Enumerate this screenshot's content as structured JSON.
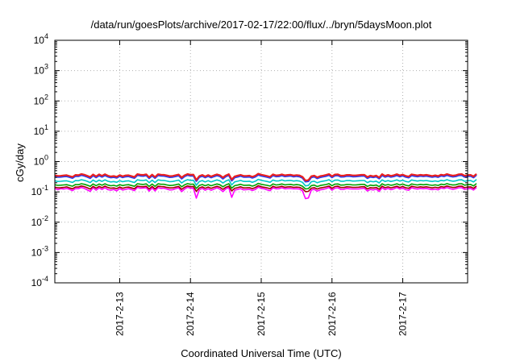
{
  "chart_data": {
    "type": "line",
    "title": "/data/run/goesPlots/archive/2017-02-17/22:00/flux/../bryn/5daysMoon.plot",
    "xlabel": "Coordinated Universal Time (UTC)",
    "ylabel": "cGy/day",
    "x_scale": "time",
    "y_scale": "log",
    "xlim": [
      "2017-02-12 02:00",
      "2017-02-17 22:00"
    ],
    "ylim": [
      0.0001,
      10000
    ],
    "grid": true,
    "legend": "none",
    "x_ticks": [
      "2017-2-13",
      "2017-2-14",
      "2017-2-15",
      "2017-2-16",
      "2017-2-17"
    ],
    "x_tick_values": [
      "2017-02-13 00:00",
      "2017-02-14 00:00",
      "2017-02-15 00:00",
      "2017-02-16 00:00",
      "2017-02-17 00:00"
    ],
    "y_ticks": [
      {
        "value": 0.0001,
        "base": "10",
        "exp": "-4"
      },
      {
        "value": 0.001,
        "base": "10",
        "exp": "-3"
      },
      {
        "value": 0.01,
        "base": "10",
        "exp": "-2"
      },
      {
        "value": 0.1,
        "base": "10",
        "exp": "-1"
      },
      {
        "value": 1,
        "base": "10",
        "exp": "0"
      },
      {
        "value": 10,
        "base": "10",
        "exp": "1"
      },
      {
        "value": 100,
        "base": "10",
        "exp": "2"
      },
      {
        "value": 1000,
        "base": "10",
        "exp": "3"
      },
      {
        "value": 10000,
        "base": "10",
        "exp": "4"
      }
    ],
    "series_time_step_hours": 1,
    "series": [
      {
        "color": "#ff00ff",
        "values": [
          0.13,
          0.118,
          0.128,
          0.124,
          0.13,
          0.121,
          0.11,
          0.129,
          0.128,
          0.14,
          0.13,
          0.117,
          0.104,
          0.138,
          0.114,
          0.135,
          0.12,
          0.138,
          0.119,
          0.114,
          0.12,
          0.108,
          0.129,
          0.115,
          0.121,
          0.128,
          0.119,
          0.11,
          0.141,
          0.132,
          0.134,
          0.138,
          0.106,
          0.135,
          0.107,
          0.138,
          0.13,
          0.133,
          0.124,
          0.116,
          0.118,
          0.128,
          0.136,
          0.102,
          0.124,
          0.142,
          0.132,
          0.133,
          0.062,
          0.117,
          0.131,
          0.113,
          0.127,
          0.113,
          0.124,
          0.137,
          0.123,
          0.102,
          0.126,
          0.138,
          0.066,
          0.114,
          0.12,
          0.129,
          0.117,
          0.119,
          0.121,
          0.111,
          0.12,
          0.144,
          0.132,
          0.126,
          0.117,
          0.109,
          0.136,
          0.126,
          0.127,
          0.137,
          0.126,
          0.129,
          0.129,
          0.126,
          0.126,
          0.124,
          0.108,
          0.06,
          0.063,
          0.116,
          0.12,
          0.106,
          0.117,
          0.121,
          0.129,
          0.14,
          0.114,
          0.133,
          0.137,
          0.121,
          0.122,
          0.13,
          0.126,
          0.125,
          0.125,
          0.125,
          0.129,
          0.132,
          0.107,
          0.12,
          0.116,
          0.124,
          0.103,
          0.138,
          0.119,
          0.13,
          0.118,
          0.126,
          0.139,
          0.124,
          0.134,
          0.118,
          0.113,
          0.138,
          0.128,
          0.124,
          0.13,
          0.127,
          0.13,
          0.123,
          0.119,
          0.124,
          0.117,
          0.134,
          0.129,
          0.139,
          0.129,
          0.121,
          0.128,
          0.137,
          0.138,
          0.121,
          0.126,
          0.13,
          0.115,
          0.14
        ]
      },
      {
        "color": "#a00000",
        "values": [
          0.143,
          0.136,
          0.138,
          0.14,
          0.146,
          0.135,
          0.126,
          0.145,
          0.145,
          0.157,
          0.149,
          0.137,
          0.124,
          0.152,
          0.132,
          0.152,
          0.138,
          0.155,
          0.139,
          0.132,
          0.135,
          0.128,
          0.145,
          0.132,
          0.14,
          0.144,
          0.135,
          0.126,
          0.156,
          0.149,
          0.148,
          0.153,
          0.124,
          0.152,
          0.125,
          0.154,
          0.149,
          0.148,
          0.14,
          0.135,
          0.136,
          0.144,
          0.151,
          0.121,
          0.142,
          0.158,
          0.148,
          0.151,
          0.104,
          0.135,
          0.146,
          0.131,
          0.145,
          0.131,
          0.142,
          0.153,
          0.142,
          0.121,
          0.142,
          0.154,
          0.108,
          0.131,
          0.138,
          0.147,
          0.135,
          0.136,
          0.138,
          0.128,
          0.139,
          0.16,
          0.147,
          0.142,
          0.135,
          0.128,
          0.153,
          0.141,
          0.145,
          0.153,
          0.142,
          0.146,
          0.147,
          0.141,
          0.144,
          0.141,
          0.127,
          0.102,
          0.104,
          0.133,
          0.138,
          0.124,
          0.134,
          0.139,
          0.146,
          0.156,
          0.131,
          0.15,
          0.154,
          0.139,
          0.139,
          0.147,
          0.145,
          0.141,
          0.141,
          0.143,
          0.147,
          0.148,
          0.125,
          0.138,
          0.134,
          0.14,
          0.122,
          0.154,
          0.137,
          0.146,
          0.136,
          0.144,
          0.154,
          0.14,
          0.151,
          0.136,
          0.131,
          0.153,
          0.146,
          0.141,
          0.147,
          0.143,
          0.147,
          0.141,
          0.135,
          0.142,
          0.135,
          0.15,
          0.144,
          0.157,
          0.146,
          0.139,
          0.143,
          0.154,
          0.155,
          0.138,
          0.145,
          0.146,
          0.131,
          0.158
        ]
      },
      {
        "color": "#00a000",
        "values": [
          0.172,
          0.164,
          0.166,
          0.17,
          0.173,
          0.163,
          0.154,
          0.175,
          0.173,
          0.186,
          0.178,
          0.166,
          0.152,
          0.183,
          0.16,
          0.181,
          0.166,
          0.185,
          0.167,
          0.159,
          0.164,
          0.155,
          0.174,
          0.161,
          0.17,
          0.173,
          0.162,
          0.153,
          0.186,
          0.179,
          0.176,
          0.184,
          0.151,
          0.181,
          0.153,
          0.185,
          0.178,
          0.178,
          0.17,
          0.162,
          0.165,
          0.172,
          0.181,
          0.147,
          0.171,
          0.187,
          0.178,
          0.18,
          0.13,
          0.163,
          0.175,
          0.159,
          0.174,
          0.159,
          0.171,
          0.183,
          0.172,
          0.147,
          0.17,
          0.186,
          0.133,
          0.16,
          0.167,
          0.178,
          0.165,
          0.165,
          0.167,
          0.155,
          0.167,
          0.191,
          0.178,
          0.171,
          0.164,
          0.156,
          0.183,
          0.17,
          0.173,
          0.183,
          0.171,
          0.175,
          0.177,
          0.169,
          0.174,
          0.17,
          0.154,
          0.125,
          0.129,
          0.161,
          0.167,
          0.15,
          0.162,
          0.168,
          0.175,
          0.187,
          0.16,
          0.18,
          0.183,
          0.167,
          0.168,
          0.176,
          0.175,
          0.17,
          0.17,
          0.173,
          0.177,
          0.177,
          0.152,
          0.167,
          0.161,
          0.168,
          0.148,
          0.185,
          0.165,
          0.175,
          0.165,
          0.172,
          0.185,
          0.17,
          0.181,
          0.165,
          0.158,
          0.183,
          0.175,
          0.17,
          0.177,
          0.172,
          0.177,
          0.17,
          0.164,
          0.171,
          0.163,
          0.179,
          0.173,
          0.187,
          0.175,
          0.168,
          0.172,
          0.184,
          0.186,
          0.166,
          0.174,
          0.176,
          0.158,
          0.189
        ]
      },
      {
        "color": "#00c8c8",
        "values": [
          0.232,
          0.22,
          0.223,
          0.229,
          0.232,
          0.218,
          0.205,
          0.236,
          0.233,
          0.252,
          0.24,
          0.223,
          0.203,
          0.246,
          0.214,
          0.245,
          0.222,
          0.249,
          0.225,
          0.213,
          0.219,
          0.207,
          0.234,
          0.216,
          0.228,
          0.232,
          0.217,
          0.204,
          0.251,
          0.241,
          0.237,
          0.248,
          0.201,
          0.243,
          0.204,
          0.249,
          0.241,
          0.239,
          0.229,
          0.217,
          0.221,
          0.232,
          0.244,
          0.196,
          0.23,
          0.253,
          0.24,
          0.242,
          0.165,
          0.219,
          0.236,
          0.213,
          0.234,
          0.212,
          0.23,
          0.247,
          0.231,
          0.196,
          0.229,
          0.251,
          0.17,
          0.214,
          0.224,
          0.239,
          0.222,
          0.221,
          0.224,
          0.207,
          0.225,
          0.258,
          0.24,
          0.23,
          0.22,
          0.208,
          0.246,
          0.229,
          0.232,
          0.247,
          0.23,
          0.236,
          0.239,
          0.227,
          0.234,
          0.228,
          0.206,
          0.158,
          0.163,
          0.216,
          0.225,
          0.2,
          0.217,
          0.226,
          0.236,
          0.252,
          0.215,
          0.243,
          0.246,
          0.224,
          0.225,
          0.237,
          0.236,
          0.228,
          0.229,
          0.233,
          0.238,
          0.238,
          0.203,
          0.224,
          0.215,
          0.226,
          0.197,
          0.25,
          0.221,
          0.236,
          0.221,
          0.232,
          0.249,
          0.228,
          0.243,
          0.221,
          0.211,
          0.247,
          0.236,
          0.228,
          0.238,
          0.231,
          0.238,
          0.228,
          0.22,
          0.23,
          0.219,
          0.241,
          0.232,
          0.252,
          0.235,
          0.225,
          0.232,
          0.248,
          0.251,
          0.223,
          0.234,
          0.237,
          0.212,
          0.255
        ]
      },
      {
        "color": "#1e3cff",
        "values": [
          0.325,
          0.31,
          0.313,
          0.322,
          0.327,
          0.306,
          0.287,
          0.333,
          0.328,
          0.357,
          0.339,
          0.313,
          0.284,
          0.347,
          0.3,
          0.347,
          0.313,
          0.352,
          0.316,
          0.298,
          0.307,
          0.29,
          0.33,
          0.302,
          0.321,
          0.326,
          0.304,
          0.285,
          0.355,
          0.34,
          0.334,
          0.351,
          0.281,
          0.343,
          0.285,
          0.352,
          0.34,
          0.337,
          0.323,
          0.305,
          0.31,
          0.327,
          0.344,
          0.274,
          0.324,
          0.358,
          0.338,
          0.342,
          0.228,
          0.307,
          0.333,
          0.298,
          0.33,
          0.297,
          0.324,
          0.349,
          0.326,
          0.274,
          0.322,
          0.355,
          0.235,
          0.3,
          0.315,
          0.337,
          0.311,
          0.31,
          0.315,
          0.29,
          0.316,
          0.366,
          0.339,
          0.324,
          0.309,
          0.291,
          0.348,
          0.322,
          0.327,
          0.349,
          0.324,
          0.333,
          0.338,
          0.319,
          0.33,
          0.321,
          0.288,
          0.218,
          0.225,
          0.303,
          0.316,
          0.279,
          0.304,
          0.318,
          0.333,
          0.357,
          0.301,
          0.344,
          0.348,
          0.315,
          0.316,
          0.334,
          0.333,
          0.321,
          0.322,
          0.329,
          0.336,
          0.336,
          0.284,
          0.315,
          0.302,
          0.318,
          0.275,
          0.354,
          0.31,
          0.333,
          0.31,
          0.327,
          0.352,
          0.321,
          0.343,
          0.31,
          0.296,
          0.349,
          0.333,
          0.321,
          0.336,
          0.326,
          0.336,
          0.321,
          0.309,
          0.324,
          0.307,
          0.34,
          0.327,
          0.357,
          0.331,
          0.316,
          0.327,
          0.351,
          0.355,
          0.313,
          0.33,
          0.334,
          0.297,
          0.362
        ]
      },
      {
        "color": "#e82020",
        "values": [
          0.352,
          0.336,
          0.339,
          0.349,
          0.355,
          0.332,
          0.311,
          0.361,
          0.356,
          0.387,
          0.368,
          0.339,
          0.308,
          0.376,
          0.325,
          0.377,
          0.339,
          0.382,
          0.343,
          0.323,
          0.333,
          0.314,
          0.358,
          0.327,
          0.348,
          0.353,
          0.33,
          0.309,
          0.385,
          0.369,
          0.362,
          0.381,
          0.304,
          0.372,
          0.309,
          0.382,
          0.369,
          0.365,
          0.35,
          0.331,
          0.336,
          0.355,
          0.373,
          0.297,
          0.352,
          0.388,
          0.366,
          0.371,
          0.247,
          0.333,
          0.361,
          0.323,
          0.358,
          0.322,
          0.351,
          0.379,
          0.353,
          0.297,
          0.349,
          0.385,
          0.255,
          0.325,
          0.342,
          0.365,
          0.337,
          0.336,
          0.342,
          0.314,
          0.343,
          0.397,
          0.368,
          0.351,
          0.335,
          0.315,
          0.377,
          0.349,
          0.355,
          0.379,
          0.351,
          0.361,
          0.367,
          0.346,
          0.358,
          0.348,
          0.312,
          0.236,
          0.244,
          0.329,
          0.343,
          0.302,
          0.33,
          0.345,
          0.361,
          0.387,
          0.326,
          0.373,
          0.378,
          0.342,
          0.343,
          0.362,
          0.361,
          0.348,
          0.349,
          0.357,
          0.364,
          0.364,
          0.308,
          0.342,
          0.327,
          0.345,
          0.298,
          0.384,
          0.336,
          0.361,
          0.336,
          0.355,
          0.382,
          0.348,
          0.372,
          0.336,
          0.321,
          0.378,
          0.361,
          0.348,
          0.364,
          0.353,
          0.364,
          0.348,
          0.335,
          0.351,
          0.333,
          0.369,
          0.355,
          0.387,
          0.359,
          0.343,
          0.355,
          0.381,
          0.385,
          0.34,
          0.358,
          0.362,
          0.322,
          0.393
        ]
      }
    ]
  }
}
